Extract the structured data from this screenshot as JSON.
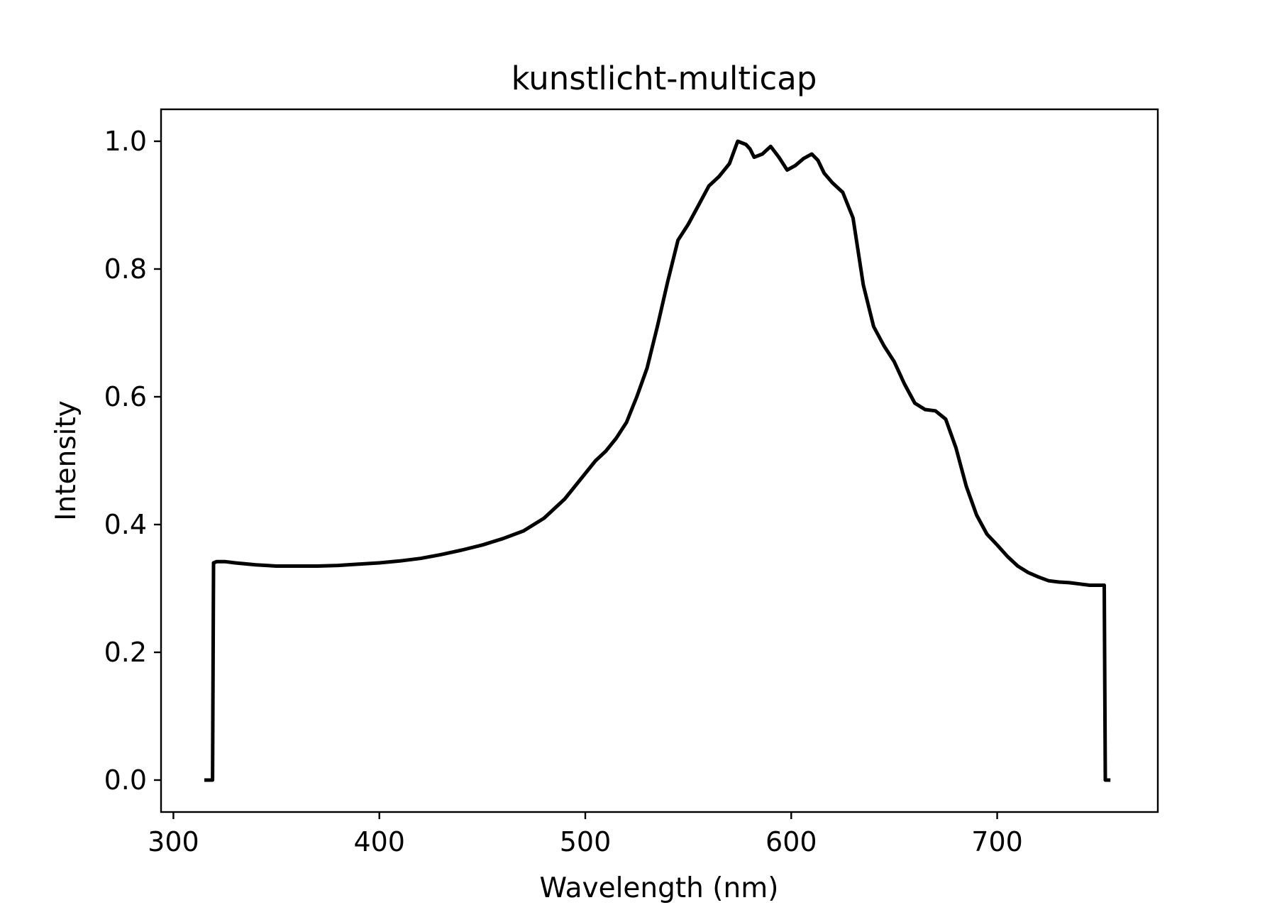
{
  "chart_data": {
    "type": "line",
    "title": "kunstlicht-multicap",
    "xlabel": "Wavelength (nm)",
    "ylabel": "Intensity",
    "xlim": [
      294,
      778
    ],
    "ylim": [
      -0.05,
      1.05
    ],
    "x_ticks": [
      300,
      400,
      500,
      600,
      700
    ],
    "x_tick_labels": [
      "300",
      "400",
      "500",
      "600",
      "700"
    ],
    "y_ticks": [
      0.0,
      0.2,
      0.4,
      0.6,
      0.8,
      1.0
    ],
    "y_tick_labels": [
      "0.0",
      "0.2",
      "0.4",
      "0.6",
      "0.8",
      "1.0"
    ],
    "grid": false,
    "legend": "none",
    "series": [
      {
        "color": "#000000",
        "x": [
          315,
          319,
          319.5,
          321,
          325,
          330,
          340,
          350,
          360,
          370,
          380,
          390,
          400,
          410,
          420,
          430,
          440,
          450,
          460,
          470,
          480,
          490,
          500,
          505,
          510,
          515,
          520,
          525,
          530,
          535,
          540,
          545,
          550,
          555,
          560,
          565,
          570,
          574,
          578,
          580,
          582,
          586,
          590,
          594,
          598,
          602,
          606,
          610,
          613,
          616,
          620,
          625,
          630,
          635,
          640,
          645,
          650,
          655,
          660,
          665,
          670,
          675,
          680,
          685,
          690,
          695,
          700,
          705,
          710,
          715,
          720,
          725,
          730,
          735,
          740,
          745,
          750,
          752,
          752.5,
          755
        ],
        "y": [
          0.0,
          0.0,
          0.34,
          0.342,
          0.342,
          0.34,
          0.337,
          0.335,
          0.335,
          0.335,
          0.336,
          0.338,
          0.34,
          0.343,
          0.347,
          0.353,
          0.36,
          0.368,
          0.378,
          0.39,
          0.41,
          0.44,
          0.48,
          0.5,
          0.515,
          0.535,
          0.56,
          0.6,
          0.645,
          0.71,
          0.78,
          0.845,
          0.87,
          0.9,
          0.93,
          0.945,
          0.965,
          1.0,
          0.995,
          0.988,
          0.975,
          0.98,
          0.992,
          0.975,
          0.955,
          0.962,
          0.973,
          0.98,
          0.97,
          0.95,
          0.935,
          0.92,
          0.88,
          0.775,
          0.71,
          0.68,
          0.655,
          0.62,
          0.59,
          0.58,
          0.578,
          0.565,
          0.52,
          0.46,
          0.415,
          0.385,
          0.368,
          0.35,
          0.335,
          0.325,
          0.318,
          0.312,
          0.31,
          0.309,
          0.307,
          0.305,
          0.305,
          0.305,
          0.0,
          0.0
        ]
      }
    ]
  }
}
